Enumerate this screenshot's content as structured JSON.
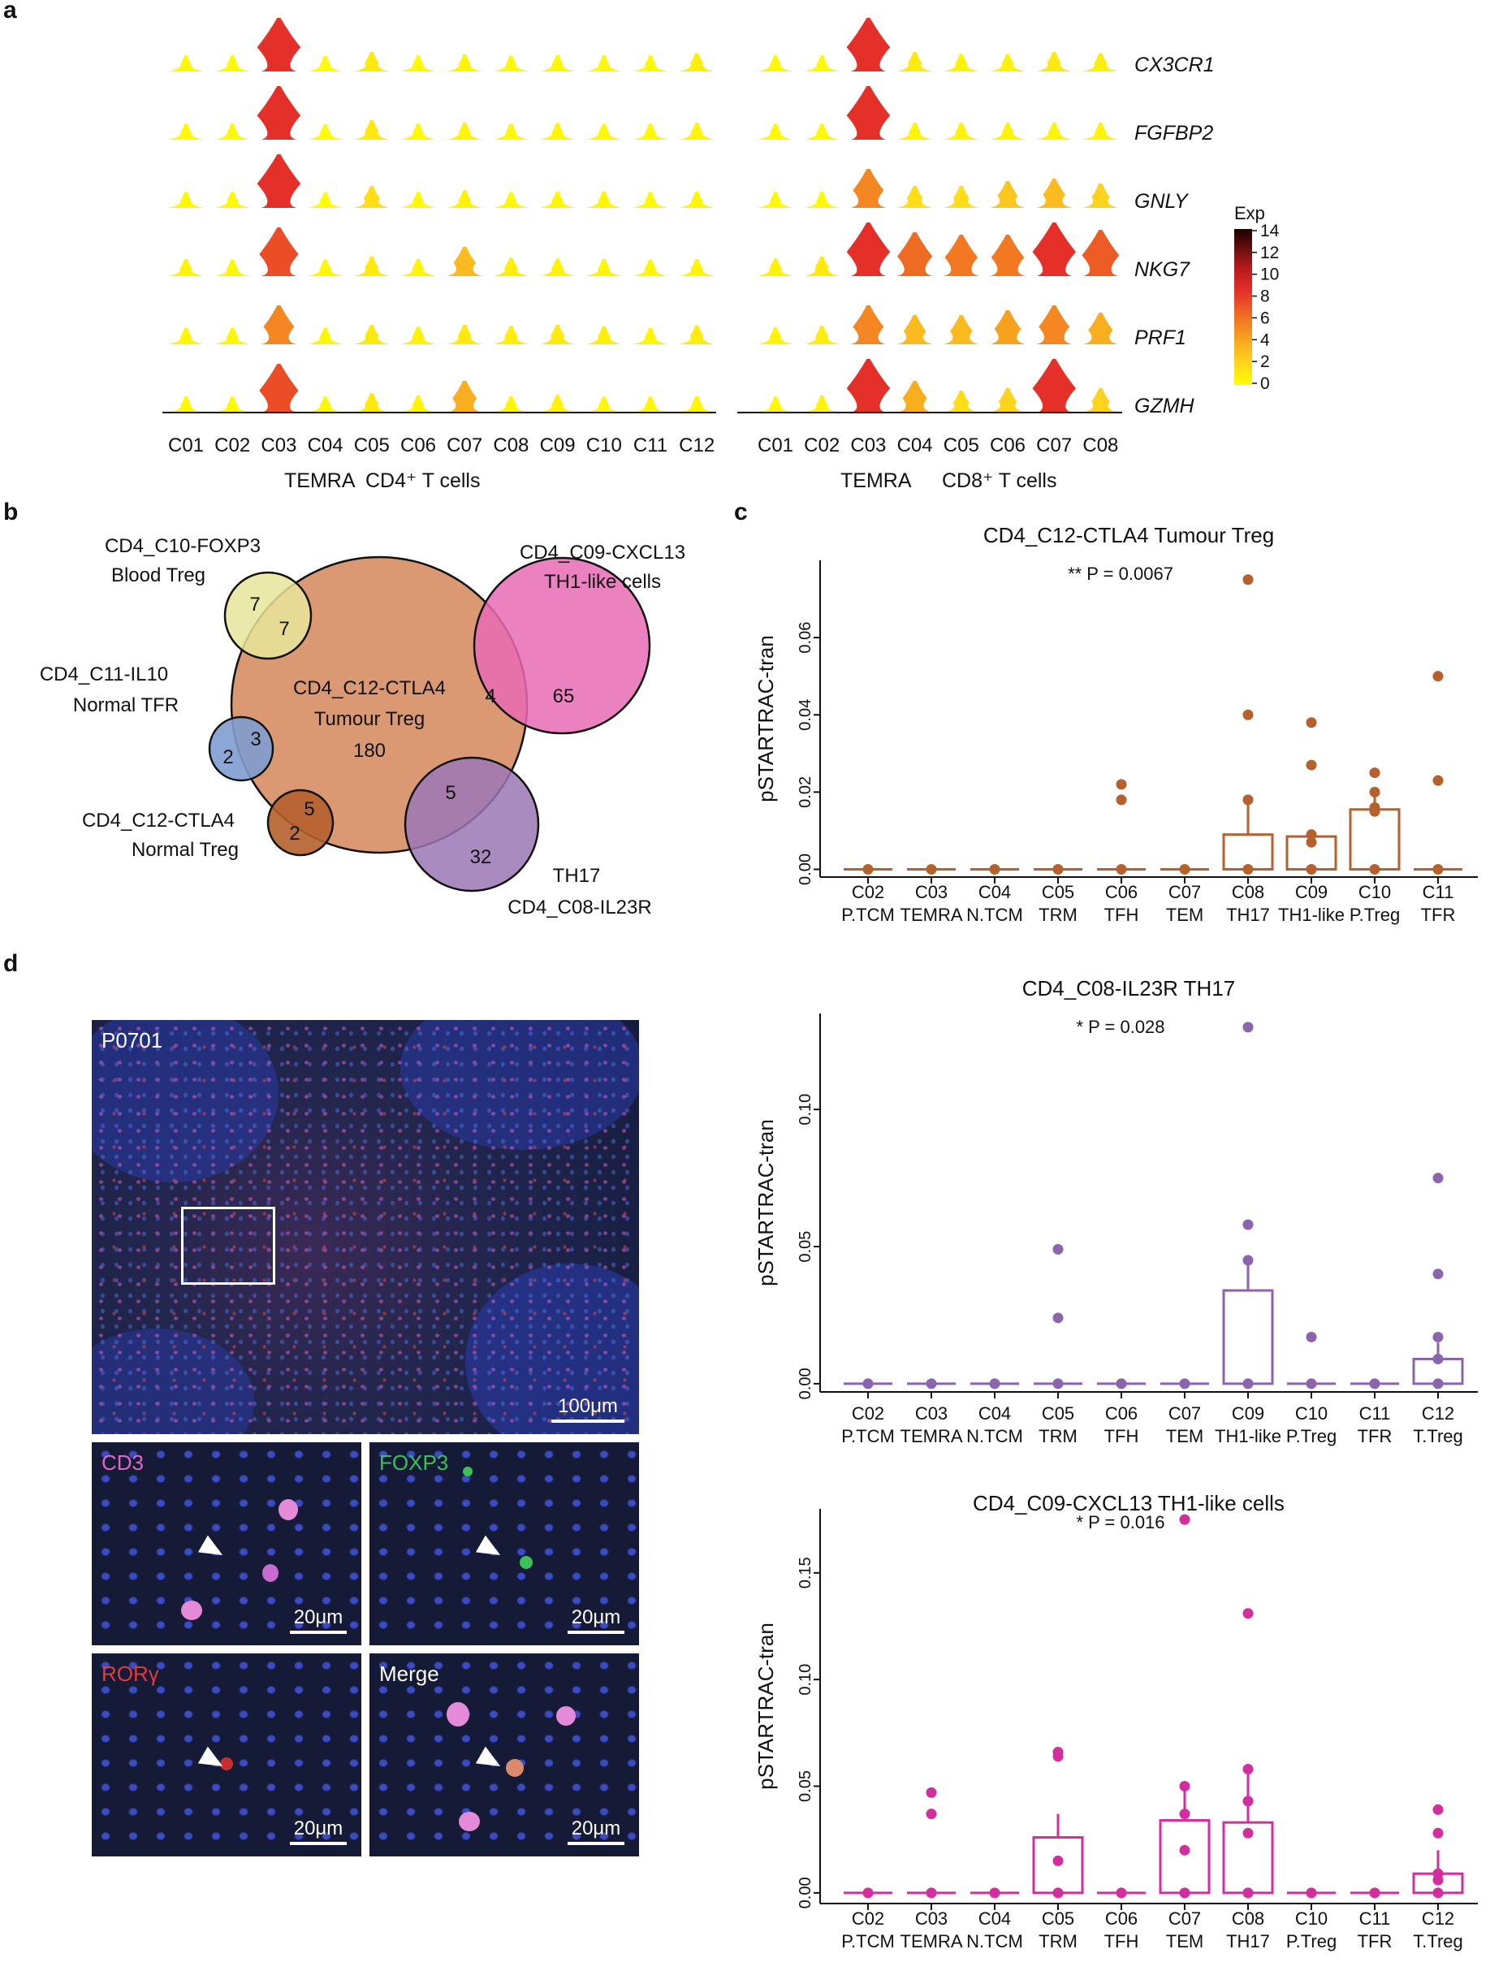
{
  "panel_labels": {
    "a": "a",
    "b": "b",
    "c": "c",
    "d": "d"
  },
  "panel_a": {
    "genes": [
      "CX3CR1",
      "FGFBP2",
      "GNLY",
      "NKG7",
      "PRF1",
      "GZMH"
    ],
    "cd4_clusters": [
      "C01",
      "C02",
      "C03",
      "C04",
      "C05",
      "C06",
      "C07",
      "C08",
      "C09",
      "C10",
      "C11",
      "C12"
    ],
    "cd8_clusters": [
      "C01",
      "C02",
      "C03",
      "C04",
      "C05",
      "C06",
      "C07",
      "C08"
    ],
    "cd4_group_temra": "TEMRA",
    "cd4_group_label": "CD4⁺ T cells",
    "cd8_group_temra": "TEMRA",
    "cd8_group_label": "CD8⁺ T cells",
    "cd4_highlight_color": "#e8673a",
    "cd8_highlight_color": "#2f7fc1",
    "legend_title": "Exp",
    "legend_ticks": [
      "14",
      "12",
      "10",
      "8",
      "6",
      "4",
      "2",
      "0"
    ],
    "cd4_expression": [
      [
        0.3,
        0.3,
        8,
        0.2,
        1,
        0.3,
        0.5,
        0.3,
        0.4,
        0.3,
        0.3,
        0.8
      ],
      [
        0.3,
        0.3,
        8,
        0.2,
        1,
        0.3,
        0.5,
        0.3,
        0.4,
        0.3,
        0.3,
        0.5
      ],
      [
        0.3,
        0.3,
        8,
        0.2,
        1.5,
        0.3,
        0.6,
        0.3,
        0.4,
        0.4,
        0.3,
        0.4
      ],
      [
        0.5,
        0.4,
        7,
        0.4,
        1,
        0.5,
        3,
        0.8,
        0.6,
        0.5,
        0.4,
        0.5
      ],
      [
        0.4,
        0.4,
        5,
        0.4,
        1,
        0.6,
        1,
        0.8,
        1,
        0.7,
        0.4,
        0.9
      ],
      [
        0.3,
        0.3,
        7,
        0.3,
        1,
        0.5,
        3.5,
        0.4,
        0.6,
        0.3,
        0.3,
        0.4
      ]
    ],
    "cd8_expression": [
      [
        0.3,
        0.3,
        8,
        1,
        0.6,
        0.6,
        1,
        0.8
      ],
      [
        0.3,
        0.3,
        8,
        0.5,
        0.5,
        0.5,
        0.5,
        0.5
      ],
      [
        0.3,
        0.3,
        5,
        1.5,
        1.5,
        2.5,
        3,
        2
      ],
      [
        0.6,
        1,
        8,
        6,
        5.5,
        5.5,
        8,
        6.5
      ],
      [
        0.5,
        0.8,
        5,
        3,
        3,
        4,
        5,
        3.5
      ],
      [
        0.3,
        0.5,
        8,
        3.5,
        1.5,
        2,
        8,
        2
      ]
    ]
  },
  "panel_b": {
    "circles": [
      {
        "title": "CD4_C12-CTLA4",
        "subtitle": "Tumour Treg",
        "count": "180",
        "color": "#d4875b"
      },
      {
        "title": "CD4_C10-FOXP3",
        "subtitle": "Blood Treg",
        "outer_count": "7",
        "overlap_count": "7",
        "color": "#e8e59a"
      },
      {
        "title": "CD4_C09-CXCL13",
        "subtitle": "TH1-like cells",
        "outer_count": "65",
        "overlap_count": "4",
        "color": "#e96bb4"
      },
      {
        "title": "CD4_C11-IL10",
        "subtitle": "Normal TFR",
        "outer_count": "2",
        "overlap_count": "3",
        "color": "#7f9cd2"
      },
      {
        "title": "CD4_C12-CTLA4",
        "subtitle": "Normal Treg",
        "outer_count": "2",
        "overlap_count": "5",
        "color": "#b5602d"
      },
      {
        "title": "CD4_C08-IL23R",
        "subtitle": "TH17",
        "outer_count": "32",
        "overlap_count": "5",
        "color": "#9b77b5"
      }
    ]
  },
  "panel_d": {
    "main_label": "P0701",
    "main_scale": "100μm",
    "insets": [
      {
        "label": "CD3",
        "color": "#e066c6",
        "scale": "20μm"
      },
      {
        "label": "FOXP3",
        "color": "#3bc05a",
        "scale": "20μm"
      },
      {
        "label": "RORγ",
        "color": "#e23b3b",
        "scale": "20μm"
      },
      {
        "label": "Merge",
        "color": "#ffffff",
        "scale": "20μm"
      }
    ]
  },
  "chart_data": [
    {
      "type": "bar",
      "title": "CD4_C12-CTLA4 Tumour Treg",
      "pvalue": "** P = 0.0067",
      "ylabel": "pSTARTRAC-tran",
      "ylim": [
        -0.002,
        0.08
      ],
      "yticks": [
        0.0,
        0.02,
        0.04,
        0.06
      ],
      "ytick_labels": [
        "0.00",
        "0.02",
        "0.04",
        "0.06"
      ],
      "color": "#b5602d",
      "categories": [
        {
          "c": "C02",
          "t": "P.TCM",
          "label_color": "#111111"
        },
        {
          "c": "C03",
          "t": "TEMRA",
          "label_color": "#111111"
        },
        {
          "c": "C04",
          "t": "N.TCM",
          "label_color": "#111111"
        },
        {
          "c": "C05",
          "t": "TRM",
          "label_color": "#111111"
        },
        {
          "c": "C06",
          "t": "TFH",
          "label_color": "#111111"
        },
        {
          "c": "C07",
          "t": "TEM",
          "label_color": "#111111"
        },
        {
          "c": "C08",
          "t": "TH17",
          "label_color": "#9b6fb6"
        },
        {
          "c": "C09",
          "t": "TH1-like",
          "label_color": "#d43a9a"
        },
        {
          "c": "C10",
          "t": "P.Treg",
          "label_color": "#111111"
        },
        {
          "c": "C11",
          "t": "TFR",
          "label_color": "#111111"
        }
      ],
      "values": [
        0,
        0,
        0,
        0,
        0,
        0,
        0.009,
        0.0085,
        0.0155,
        0
      ],
      "errors": [
        0,
        0,
        0,
        0,
        0,
        0,
        0.0175,
        0.0095,
        0.0205,
        0
      ],
      "points": [
        [
          0
        ],
        [
          0
        ],
        [
          0
        ],
        [
          0
        ],
        [
          0.018,
          0.022,
          0
        ],
        [
          0
        ],
        [
          0.075,
          0.04,
          0.018,
          0
        ],
        [
          0.038,
          0.027,
          0.009,
          0.007,
          0
        ],
        [
          0.025,
          0.02,
          0.016,
          0.015,
          0
        ],
        [
          0.05,
          0.023,
          0
        ]
      ]
    },
    {
      "type": "bar",
      "title": "CD4_C08-IL23R  TH17",
      "pvalue": "* P = 0.028",
      "ylabel": "pSTARTRAC-tran",
      "ylim": [
        -0.003,
        0.135
      ],
      "yticks": [
        0.0,
        0.05,
        0.1
      ],
      "ytick_labels": [
        "0.00",
        "0.05",
        "0.10"
      ],
      "color": "#8a64ad",
      "categories": [
        {
          "c": "C02",
          "t": "P.TCM",
          "label_color": "#111111"
        },
        {
          "c": "C03",
          "t": "TEMRA",
          "label_color": "#111111"
        },
        {
          "c": "C04",
          "t": "N.TCM",
          "label_color": "#111111"
        },
        {
          "c": "C05",
          "t": "TRM",
          "label_color": "#111111"
        },
        {
          "c": "C06",
          "t": "TFH",
          "label_color": "#111111"
        },
        {
          "c": "C07",
          "t": "TEM",
          "label_color": "#111111"
        },
        {
          "c": "C09",
          "t": "TH1-like",
          "label_color": "#111111"
        },
        {
          "c": "C10",
          "t": "P.Treg",
          "label_color": "#111111"
        },
        {
          "c": "C11",
          "t": "TFR",
          "label_color": "#111111"
        },
        {
          "c": "C12",
          "t": "T.Treg",
          "label_color": "#b5602d"
        }
      ],
      "values": [
        0,
        0,
        0,
        0,
        0,
        0,
        0.034,
        0,
        0,
        0.009
      ],
      "errors": [
        0,
        0,
        0,
        0,
        0,
        0,
        0.045,
        0,
        0,
        0.015
      ],
      "points": [
        [
          0
        ],
        [
          0
        ],
        [
          0
        ],
        [
          0.049,
          0.024,
          0
        ],
        [
          0
        ],
        [
          0
        ],
        [
          0.13,
          0.058,
          0.045,
          0
        ],
        [
          0.017,
          0
        ],
        [
          0
        ],
        [
          0.075,
          0.04,
          0.017,
          0.009,
          0
        ]
      ]
    },
    {
      "type": "bar",
      "title": "CD4_C09-CXCL13  TH1-like cells",
      "pvalue": "* P = 0.016",
      "ylabel": "pSTARTRAC-tran",
      "ylim": [
        -0.005,
        0.18
      ],
      "yticks": [
        0.0,
        0.05,
        0.1,
        0.15
      ],
      "ytick_labels": [
        "0.00",
        "0.05",
        "0.10",
        "0.15"
      ],
      "color": "#d22e9e",
      "categories": [
        {
          "c": "C02",
          "t": "P.TCM",
          "label_color": "#111111"
        },
        {
          "c": "C03",
          "t": "TEMRA",
          "label_color": "#111111"
        },
        {
          "c": "C04",
          "t": "N.TCM",
          "label_color": "#111111"
        },
        {
          "c": "C05",
          "t": "TRM",
          "label_color": "#111111"
        },
        {
          "c": "C06",
          "t": "TFH",
          "label_color": "#111111"
        },
        {
          "c": "C07",
          "t": "TEM",
          "label_color": "#111111"
        },
        {
          "c": "C08",
          "t": "TH17",
          "label_color": "#111111"
        },
        {
          "c": "C10",
          "t": "P.Treg",
          "label_color": "#111111"
        },
        {
          "c": "C11",
          "t": "TFR",
          "label_color": "#111111"
        },
        {
          "c": "C12",
          "t": "T.Treg",
          "label_color": "#b5602d"
        }
      ],
      "values": [
        0,
        0,
        0,
        0.026,
        0,
        0.034,
        0.033,
        0,
        0,
        0.009
      ],
      "errors": [
        0,
        0,
        0,
        0.037,
        0,
        0.05,
        0.056,
        0,
        0,
        0.02
      ],
      "points": [
        [
          0
        ],
        [
          0.047,
          0.037,
          0
        ],
        [
          0
        ],
        [
          0.066,
          0.064,
          0.015,
          0
        ],
        [
          0
        ],
        [
          0.175,
          0.05,
          0.037,
          0.02,
          0
        ],
        [
          0.131,
          0.058,
          0.043,
          0.028,
          0
        ],
        [
          0
        ],
        [
          0
        ],
        [
          0.039,
          0.028,
          0.009,
          0.006,
          0
        ]
      ]
    }
  ]
}
